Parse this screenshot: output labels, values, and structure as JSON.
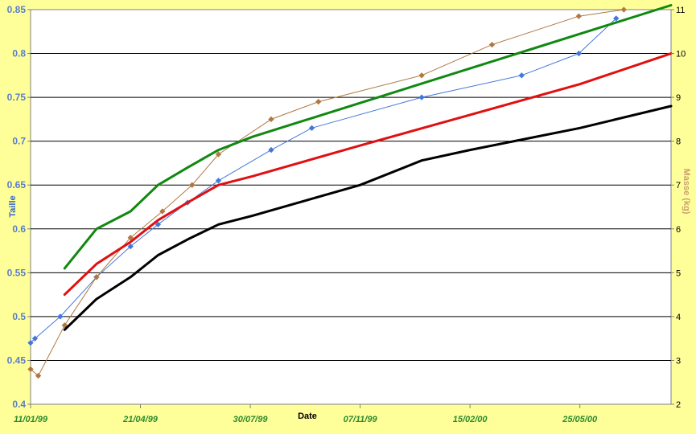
{
  "chart_data": {
    "type": "line",
    "xlabel": "Date",
    "ylabel_left": "Taille",
    "ylabel_right": "Masse (kg)",
    "ylim_left": [
      0.4,
      0.85
    ],
    "ylim_right": [
      2,
      11
    ],
    "yticks_left": [
      "0.4",
      "0.45",
      "0.5",
      "0.55",
      "0.6",
      "0.65",
      "0.7",
      "0.75",
      "0.8",
      "0.85"
    ],
    "yticks_right": [
      "2",
      "3",
      "4",
      "5",
      "6",
      "7",
      "8",
      "9",
      "10",
      "11"
    ],
    "xlim": [
      "1999-01-11",
      "2000-08-16"
    ],
    "xticks": [
      {
        "label": "11/01/99",
        "date": "1999-01-11"
      },
      {
        "label": "21/04/99",
        "date": "1999-04-21"
      },
      {
        "label": "30/07/99",
        "date": "1999-07-30"
      },
      {
        "label": "07/11/99",
        "date": "1999-11-07"
      },
      {
        "label": "15/02/00",
        "date": "2000-02-15"
      },
      {
        "label": "25/05/00",
        "date": "2000-05-25"
      }
    ],
    "grid": "horizontal",
    "colors": {
      "background": "#ffff99",
      "plot": "#ffffff",
      "taille": "#4477dd",
      "masse": "#b07840",
      "green": "#118811",
      "red": "#e01010",
      "black": "#000000"
    },
    "series": [
      {
        "key": "taille",
        "axis": "left",
        "marker": "diamond",
        "x": [
          "1999-01-11",
          "1999-01-15",
          "1999-02-07",
          "1999-03-12",
          "1999-04-12",
          "1999-05-07",
          "1999-06-03",
          "1999-07-01",
          "1999-08-18",
          "1999-09-24",
          "2000-01-02",
          "2000-04-02",
          "2000-05-24",
          "2000-06-27"
        ],
        "y": [
          0.47,
          0.475,
          0.5,
          0.545,
          0.58,
          0.605,
          0.63,
          0.655,
          0.69,
          0.715,
          0.75,
          0.775,
          0.8,
          0.84
        ]
      },
      {
        "key": "masse",
        "axis": "right",
        "marker": "diamond",
        "x": [
          "1999-01-11",
          "1999-01-18",
          "1999-02-11",
          "1999-03-12",
          "1999-04-12",
          "1999-05-11",
          "1999-06-07",
          "1999-07-01",
          "1999-08-18",
          "1999-09-30",
          "2000-01-02",
          "2000-03-06",
          "2000-05-24",
          "2000-07-04"
        ],
        "y": [
          2.8,
          2.65,
          3.8,
          4.9,
          5.8,
          6.4,
          7.0,
          7.7,
          8.5,
          8.9,
          9.5,
          10.2,
          10.85,
          11.0
        ]
      },
      {
        "key": "green",
        "axis": "left",
        "x": [
          "1999-02-11",
          "1999-03-12",
          "1999-04-12",
          "1999-05-07",
          "1999-06-03",
          "1999-07-01",
          "1999-08-01",
          "2000-08-16"
        ],
        "y": [
          0.555,
          0.6,
          0.62,
          0.65,
          0.67,
          0.69,
          0.705,
          0.855
        ]
      },
      {
        "key": "red",
        "axis": "left",
        "x": [
          "1999-02-11",
          "1999-03-12",
          "1999-04-12",
          "1999-05-07",
          "1999-06-03",
          "1999-07-01",
          "1999-08-01",
          "1999-11-07",
          "2000-02-15",
          "2000-05-25",
          "2000-08-16"
        ],
        "y": [
          0.525,
          0.56,
          0.585,
          0.61,
          0.63,
          0.65,
          0.66,
          0.695,
          0.73,
          0.765,
          0.8
        ]
      },
      {
        "key": "black",
        "axis": "left",
        "x": [
          "1999-02-11",
          "1999-03-12",
          "1999-04-12",
          "1999-05-07",
          "1999-06-03",
          "1999-07-01",
          "1999-08-01",
          "1999-11-07",
          "2000-01-02",
          "2000-02-15",
          "2000-05-25",
          "2000-08-16"
        ],
        "y": [
          0.485,
          0.52,
          0.545,
          0.57,
          0.588,
          0.605,
          0.615,
          0.65,
          0.678,
          0.69,
          0.715,
          0.74
        ]
      }
    ]
  }
}
